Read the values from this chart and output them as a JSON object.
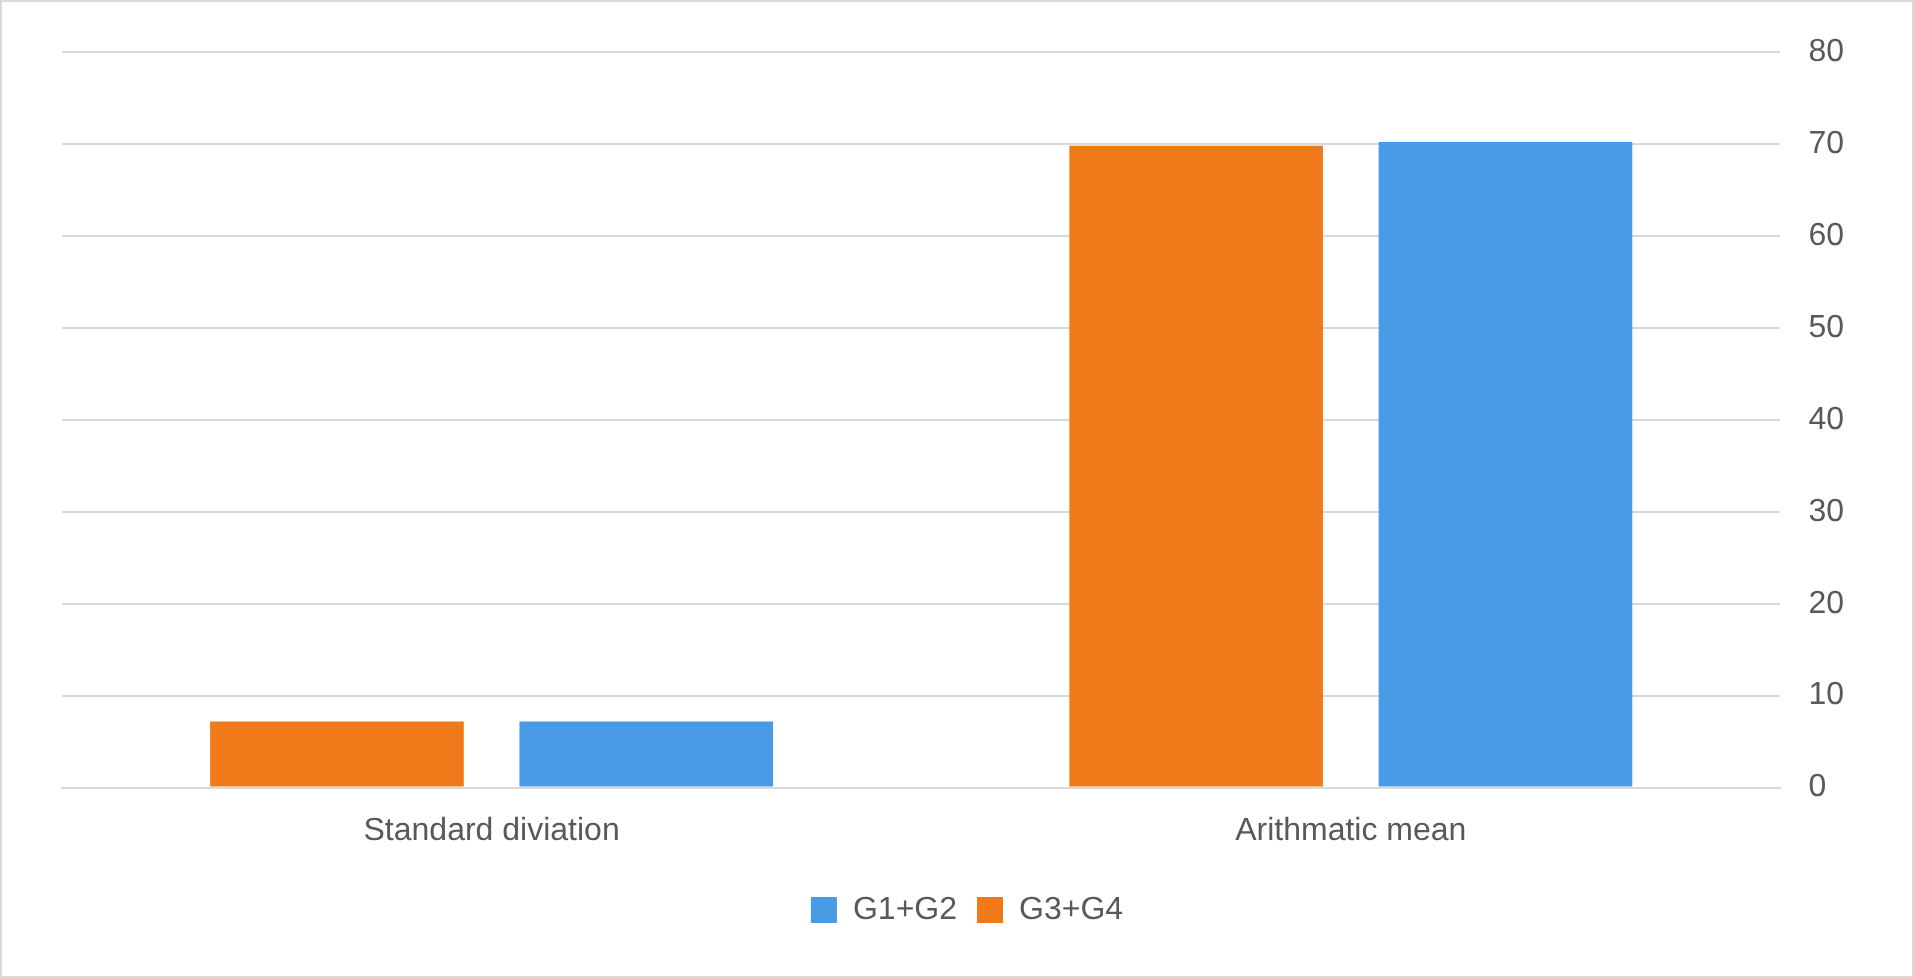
{
  "chart_data": {
    "type": "bar",
    "categories": [
      "Standard diviation",
      "Arithmatic mean"
    ],
    "series": [
      {
        "name": "G3+G4",
        "color": "#f07a1a",
        "values": [
          7.2,
          69.8
        ]
      },
      {
        "name": "G1+G2",
        "color": "#4a9be6",
        "values": [
          7.2,
          70.2
        ]
      }
    ],
    "ylim": [
      0,
      80
    ],
    "yticks": [
      0,
      10,
      20,
      30,
      40,
      50,
      60,
      70,
      80
    ],
    "grid": "y",
    "legend": "bottom"
  }
}
